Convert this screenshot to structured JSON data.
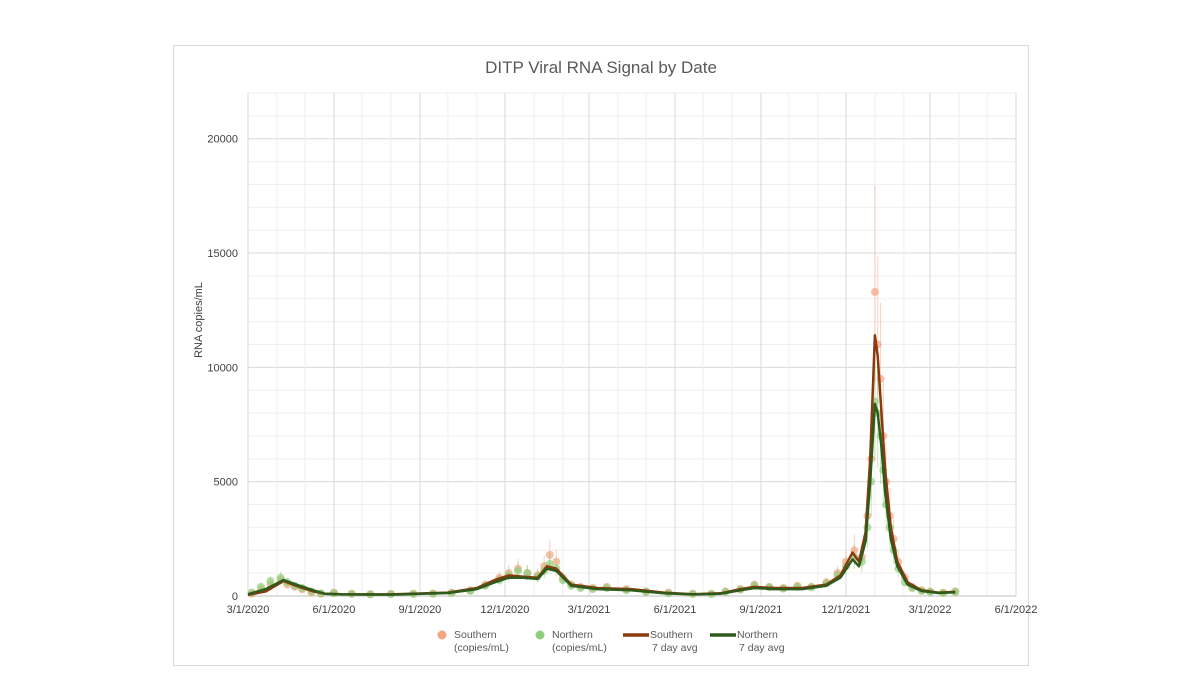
{
  "chart_data": {
    "type": "scatter",
    "title": "DITP Viral RNA Signal by Date",
    "xlabel": "",
    "ylabel": "RNA copies/mL",
    "ylim": [
      0,
      22000
    ],
    "xlim": [
      "2020-03-01",
      "2022-06-01"
    ],
    "grid": true,
    "legend_position": "bottom",
    "x_ticks": [
      "3/1/2020",
      "6/1/2020",
      "9/1/2020",
      "12/1/2020",
      "3/1/2021",
      "6/1/2021",
      "9/1/2021",
      "12/1/2021",
      "3/1/2022",
      "6/1/2022"
    ],
    "y_ticks": [
      "0",
      "5000",
      "10000",
      "15000",
      "20000"
    ],
    "colors": {
      "southern_points": "#f4a582",
      "northern_points": "#8fcf7a",
      "southern_avg": "#8b3a0f",
      "northern_avg": "#2e5a1c"
    },
    "series": [
      {
        "name": "Southern (copies/mL)",
        "kind": "points",
        "x": [
          "2020-03-05",
          "2020-03-15",
          "2020-03-25",
          "2020-04-05",
          "2020-04-12",
          "2020-04-20",
          "2020-04-28",
          "2020-05-08",
          "2020-05-18",
          "2020-06-01",
          "2020-06-20",
          "2020-07-10",
          "2020-08-01",
          "2020-08-25",
          "2020-09-15",
          "2020-10-05",
          "2020-10-25",
          "2020-11-10",
          "2020-11-25",
          "2020-12-05",
          "2020-12-15",
          "2020-12-25",
          "2021-01-05",
          "2021-01-12",
          "2021-01-18",
          "2021-01-25",
          "2021-02-01",
          "2021-02-10",
          "2021-02-20",
          "2021-03-05",
          "2021-03-20",
          "2021-04-10",
          "2021-05-01",
          "2021-05-25",
          "2021-06-20",
          "2021-07-10",
          "2021-07-25",
          "2021-08-10",
          "2021-08-25",
          "2021-09-10",
          "2021-09-25",
          "2021-10-10",
          "2021-10-25",
          "2021-11-10",
          "2021-11-22",
          "2021-12-01",
          "2021-12-10",
          "2021-12-18",
          "2021-12-24",
          "2021-12-28",
          "2022-01-01",
          "2022-01-04",
          "2022-01-07",
          "2022-01-10",
          "2022-01-13",
          "2022-01-17",
          "2022-01-21",
          "2022-01-26",
          "2022-02-02",
          "2022-02-10",
          "2022-02-20",
          "2022-03-01",
          "2022-03-15",
          "2022-03-28"
        ],
        "y": [
          100,
          300,
          500,
          700,
          500,
          400,
          300,
          150,
          100,
          150,
          100,
          80,
          90,
          100,
          110,
          150,
          250,
          500,
          800,
          1000,
          1200,
          1000,
          900,
          1300,
          1800,
          1500,
          800,
          500,
          400,
          350,
          400,
          300,
          200,
          150,
          100,
          100,
          200,
          300,
          500,
          400,
          350,
          450,
          400,
          600,
          1000,
          1500,
          2000,
          1700,
          3500,
          6000,
          13300,
          11000,
          9500,
          7000,
          5000,
          3500,
          2500,
          1500,
          800,
          400,
          250,
          200,
          150,
          200
        ]
      },
      {
        "name": "Northern (copies/mL)",
        "kind": "points",
        "x": [
          "2020-03-05",
          "2020-03-15",
          "2020-03-25",
          "2020-04-05",
          "2020-04-12",
          "2020-04-20",
          "2020-04-28",
          "2020-05-08",
          "2020-05-18",
          "2020-06-01",
          "2020-06-20",
          "2020-07-10",
          "2020-08-01",
          "2020-08-25",
          "2020-09-15",
          "2020-10-05",
          "2020-10-25",
          "2020-11-10",
          "2020-11-25",
          "2020-12-05",
          "2020-12-15",
          "2020-12-25",
          "2021-01-05",
          "2021-01-12",
          "2021-01-18",
          "2021-01-25",
          "2021-02-01",
          "2021-02-10",
          "2021-02-20",
          "2021-03-05",
          "2021-03-20",
          "2021-04-10",
          "2021-05-01",
          "2021-05-25",
          "2021-06-20",
          "2021-07-10",
          "2021-07-25",
          "2021-08-10",
          "2021-08-25",
          "2021-09-10",
          "2021-09-25",
          "2021-10-10",
          "2021-10-25",
          "2021-11-10",
          "2021-11-22",
          "2021-12-01",
          "2021-12-10",
          "2021-12-18",
          "2021-12-24",
          "2021-12-28",
          "2022-01-01",
          "2022-01-04",
          "2022-01-07",
          "2022-01-10",
          "2022-01-13",
          "2022-01-17",
          "2022-01-21",
          "2022-01-26",
          "2022-02-02",
          "2022-02-10",
          "2022-02-20",
          "2022-03-01",
          "2022-03-15",
          "2022-03-28"
        ],
        "y": [
          150,
          400,
          650,
          800,
          600,
          450,
          350,
          200,
          120,
          120,
          90,
          70,
          80,
          90,
          100,
          130,
          220,
          450,
          700,
          900,
          1100,
          1000,
          850,
          1100,
          1400,
          1200,
          700,
          450,
          350,
          300,
          350,
          250,
          180,
          120,
          90,
          90,
          180,
          280,
          450,
          380,
          320,
          400,
          380,
          550,
          900,
          1300,
          1700,
          1500,
          3000,
          5000,
          8500,
          8000,
          7000,
          5500,
          4000,
          3000,
          2000,
          1200,
          600,
          350,
          220,
          180,
          130,
          180
        ]
      },
      {
        "name": "Southern 7 day avg",
        "kind": "line",
        "x": [
          "2020-03-01",
          "2020-03-20",
          "2020-04-08",
          "2020-04-25",
          "2020-05-10",
          "2020-05-22",
          "2020-06-10",
          "2020-08-01",
          "2020-10-01",
          "2020-11-01",
          "2020-11-20",
          "2020-12-05",
          "2020-12-20",
          "2021-01-05",
          "2021-01-15",
          "2021-01-25",
          "2021-02-10",
          "2021-03-10",
          "2021-04-15",
          "2021-05-20",
          "2021-06-20",
          "2021-07-20",
          "2021-08-10",
          "2021-08-25",
          "2021-09-15",
          "2021-10-15",
          "2021-11-10",
          "2021-11-25",
          "2021-12-08",
          "2021-12-15",
          "2021-12-22",
          "2021-12-27",
          "2022-01-01",
          "2022-01-04",
          "2022-01-08",
          "2022-01-12",
          "2022-01-18",
          "2022-01-25",
          "2022-02-05",
          "2022-02-20",
          "2022-03-10",
          "2022-03-28"
        ],
        "y": [
          50,
          200,
          650,
          400,
          200,
          100,
          80,
          70,
          150,
          350,
          700,
          900,
          850,
          800,
          1300,
          1200,
          500,
          350,
          300,
          150,
          80,
          120,
          300,
          400,
          350,
          350,
          500,
          900,
          1900,
          1500,
          2800,
          6000,
          11400,
          10500,
          8000,
          5500,
          3000,
          1500,
          600,
          250,
          150,
          180
        ]
      },
      {
        "name": "Northern 7 day avg",
        "kind": "line",
        "x": [
          "2020-03-01",
          "2020-03-20",
          "2020-04-08",
          "2020-04-25",
          "2020-05-10",
          "2020-05-22",
          "2020-06-10",
          "2020-08-01",
          "2020-10-01",
          "2020-11-01",
          "2020-11-20",
          "2020-12-05",
          "2020-12-20",
          "2021-01-05",
          "2021-01-15",
          "2021-01-25",
          "2021-02-10",
          "2021-03-10",
          "2021-04-15",
          "2021-05-20",
          "2021-06-20",
          "2021-07-20",
          "2021-08-10",
          "2021-08-25",
          "2021-09-15",
          "2021-10-15",
          "2021-11-10",
          "2021-11-25",
          "2021-12-08",
          "2021-12-15",
          "2021-12-22",
          "2021-12-27",
          "2022-01-01",
          "2022-01-04",
          "2022-01-08",
          "2022-01-12",
          "2022-01-18",
          "2022-01-25",
          "2022-02-05",
          "2022-02-20",
          "2022-03-10",
          "2022-03-28"
        ],
        "y": [
          80,
          300,
          700,
          450,
          250,
          100,
          70,
          60,
          130,
          300,
          600,
          800,
          800,
          750,
          1200,
          1100,
          450,
          300,
          250,
          120,
          70,
          100,
          250,
          350,
          300,
          300,
          450,
          800,
          1600,
          1300,
          2400,
          5000,
          8400,
          8000,
          6500,
          4500,
          2500,
          1300,
          500,
          220,
          130,
          160
        ]
      }
    ]
  },
  "legend": {
    "southern_points": {
      "line1": "Southern",
      "line2": "(copies/mL)"
    },
    "northern_points": {
      "line1": "Northern",
      "line2": "(copies/mL)"
    },
    "southern_avg": {
      "line1": "Southern",
      "line2": "7 day avg"
    },
    "northern_avg": {
      "line1": "Northern",
      "line2": "7 day avg"
    }
  }
}
